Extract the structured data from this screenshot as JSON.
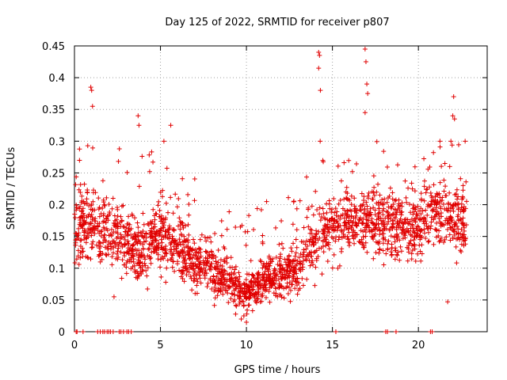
{
  "chart_data": {
    "type": "scatter",
    "title": "Day 125 of 2022, SRMTID for receiver p807",
    "xlabel": "GPS time / hours",
    "ylabel": "SRMTID / TECUs",
    "xlim": [
      0,
      24
    ],
    "ylim": [
      0,
      0.45
    ],
    "xticks": [
      0,
      5,
      10,
      15,
      20
    ],
    "xtick_labels": [
      "0",
      "5",
      "10",
      "15",
      "20"
    ],
    "yticks": [
      0,
      0.05,
      0.1,
      0.15,
      0.2,
      0.25,
      0.3,
      0.35,
      0.4,
      0.45
    ],
    "ytick_labels": [
      "0",
      "0.05",
      "0.1",
      "0.15",
      "0.2",
      "0.25",
      "0.3",
      "0.35",
      "0.4",
      "0.45"
    ],
    "grid": true,
    "marker": "+",
    "series": [
      {
        "name": "SRMTID",
        "color": "#e00000",
        "envelope": {
          "hours": [
            0,
            1,
            2,
            3,
            4,
            5,
            6,
            7,
            8,
            9,
            10,
            11,
            12,
            13,
            14,
            15,
            16,
            17,
            18,
            19,
            20,
            21,
            22,
            22.8
          ],
          "center": [
            0.16,
            0.17,
            0.16,
            0.14,
            0.13,
            0.15,
            0.14,
            0.11,
            0.1,
            0.08,
            0.06,
            0.08,
            0.09,
            0.1,
            0.15,
            0.17,
            0.17,
            0.18,
            0.17,
            0.16,
            0.17,
            0.19,
            0.18,
            0.17
          ],
          "spread": [
            0.05,
            0.06,
            0.05,
            0.05,
            0.05,
            0.05,
            0.05,
            0.04,
            0.04,
            0.03,
            0.025,
            0.03,
            0.035,
            0.04,
            0.05,
            0.05,
            0.05,
            0.05,
            0.05,
            0.05,
            0.05,
            0.05,
            0.05,
            0.05
          ]
        },
        "highlights": [
          {
            "x": 0.95,
            "y": 0.385
          },
          {
            "x": 1.0,
            "y": 0.38
          },
          {
            "x": 1.05,
            "y": 0.355
          },
          {
            "x": 3.7,
            "y": 0.34
          },
          {
            "x": 3.75,
            "y": 0.325
          },
          {
            "x": 5.6,
            "y": 0.325
          },
          {
            "x": 14.2,
            "y": 0.44
          },
          {
            "x": 14.25,
            "y": 0.435
          },
          {
            "x": 14.2,
            "y": 0.415
          },
          {
            "x": 14.3,
            "y": 0.38
          },
          {
            "x": 16.9,
            "y": 0.445
          },
          {
            "x": 16.95,
            "y": 0.425
          },
          {
            "x": 17.0,
            "y": 0.39
          },
          {
            "x": 17.05,
            "y": 0.375
          },
          {
            "x": 16.9,
            "y": 0.345
          },
          {
            "x": 22.05,
            "y": 0.37
          },
          {
            "x": 22.0,
            "y": 0.34
          },
          {
            "x": 22.1,
            "y": 0.335
          },
          {
            "x": 9.7,
            "y": 0.02
          },
          {
            "x": 9.85,
            "y": 0.025
          },
          {
            "x": 10.0,
            "y": 0.015
          },
          {
            "x": 2.3,
            "y": 0.055
          },
          {
            "x": 21.7,
            "y": 0.047
          }
        ],
        "zero_values_at_hours": [
          0.1,
          0.15,
          0.5,
          1.35,
          1.5,
          1.65,
          1.75,
          1.9,
          2.0,
          2.1,
          2.25,
          2.6,
          2.7,
          2.85,
          3.05,
          3.15,
          3.3,
          15.2,
          18.1,
          18.2,
          18.7,
          20.7,
          20.8
        ]
      }
    ]
  }
}
